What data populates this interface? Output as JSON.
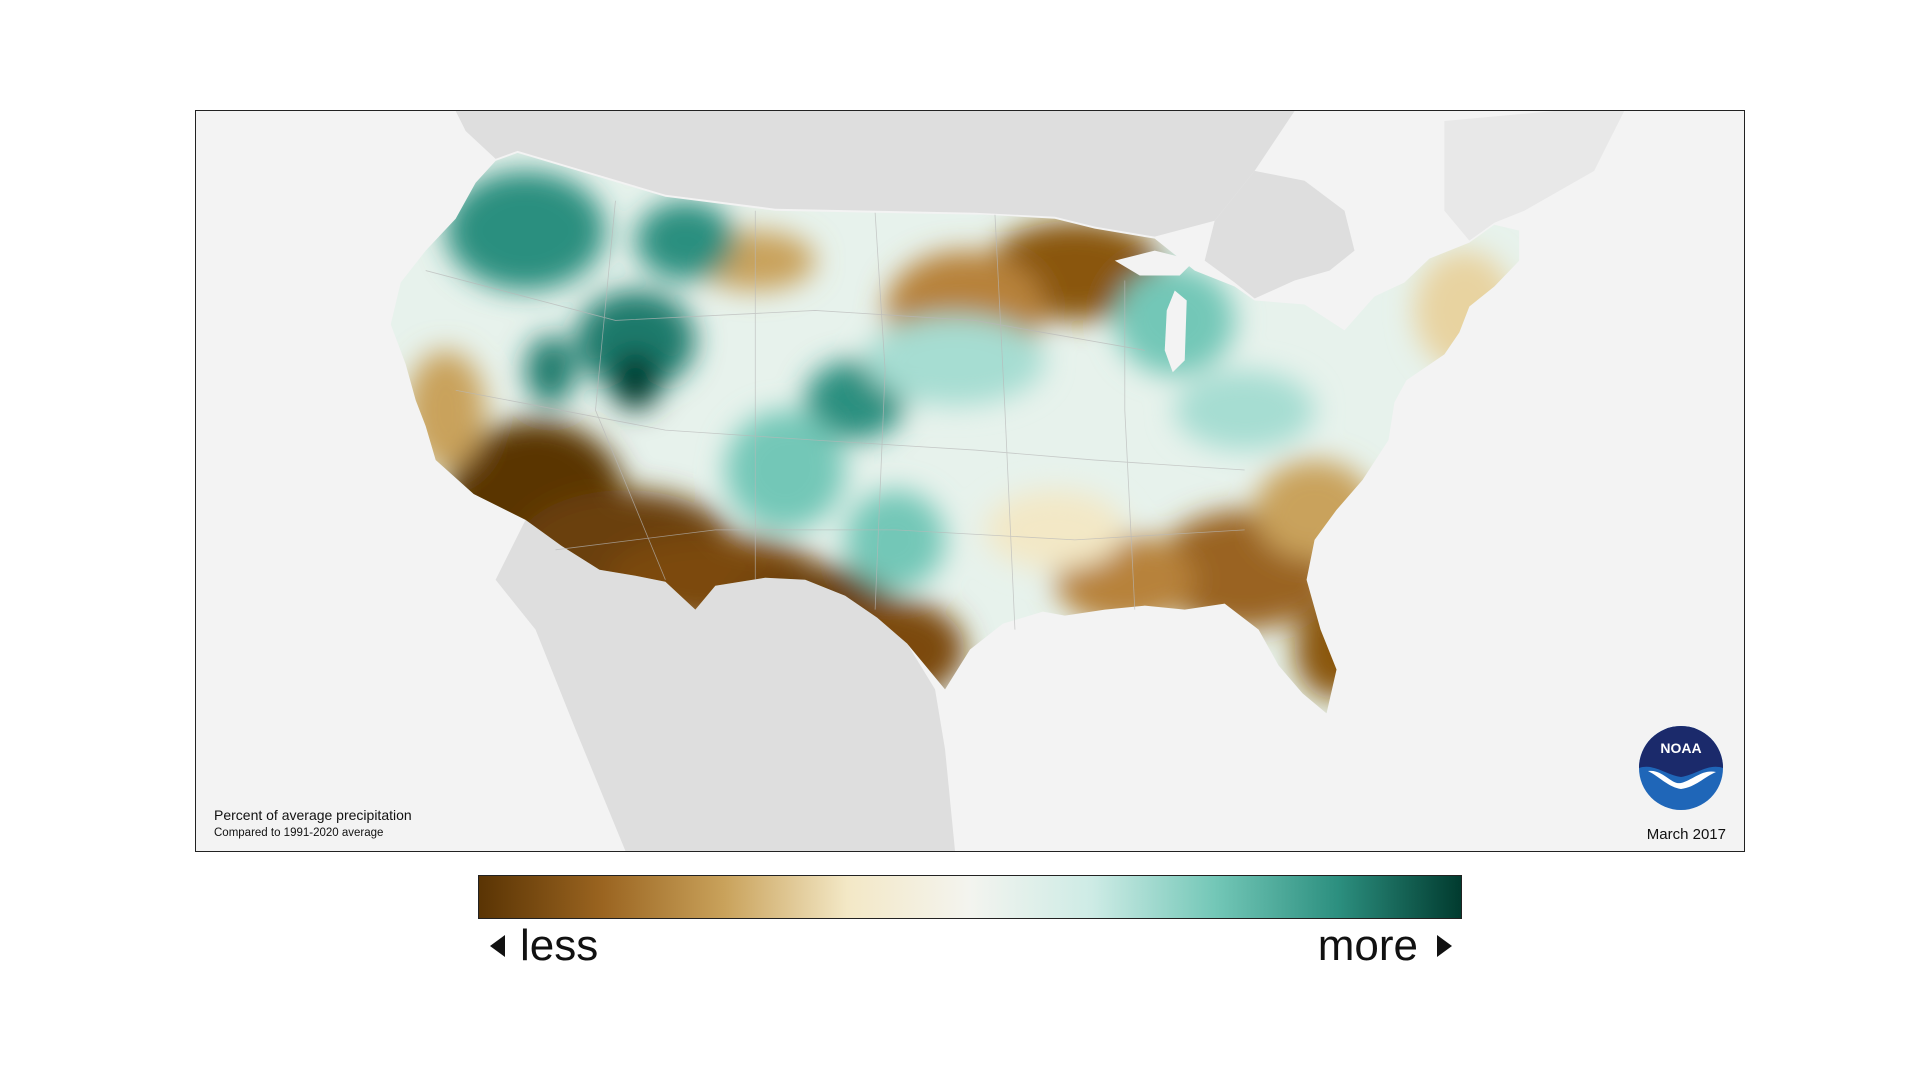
{
  "map": {
    "caption_title": "Percent of average precipitation",
    "caption_subtitle": "Compared to 1991-2020 average",
    "date": "March 2017",
    "logo_text": "NOAA",
    "colors": {
      "background": "#f3f3f3",
      "land_gray": "#dedede",
      "driest": "#5a3404",
      "dry": "#b7823a",
      "neutral": "#f3f4ef",
      "wet": "#73c7b7",
      "wettest": "#013b2f",
      "logo_blue": "#1f66b8",
      "logo_navy": "#1b2a6b"
    }
  },
  "legend": {
    "less_label": "less",
    "more_label": "more",
    "gradient": [
      "#5a3404",
      "#9a6420",
      "#c9a25b",
      "#f3e8c6",
      "#f3f4ef",
      "#cdebe5",
      "#73c7b7",
      "#2c8f7f",
      "#013b2f"
    ]
  }
}
